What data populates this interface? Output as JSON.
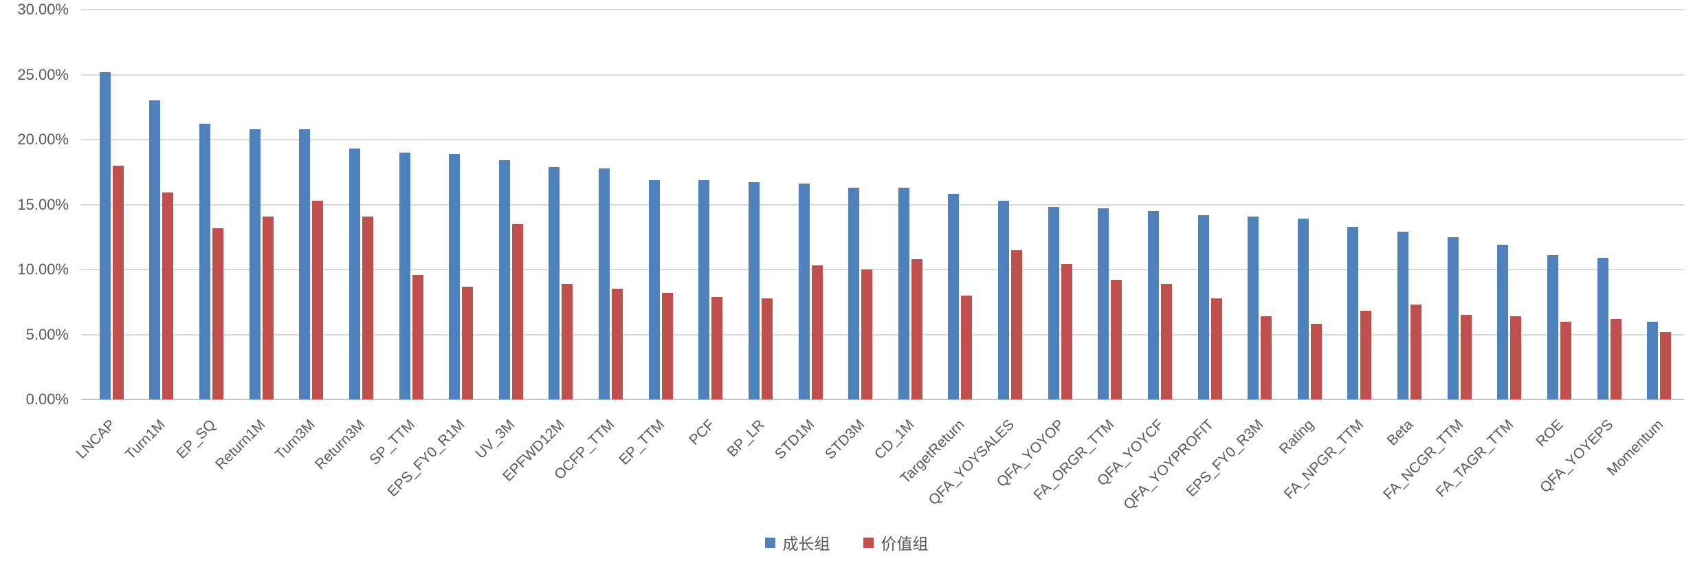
{
  "chart_data": {
    "type": "bar",
    "title": "",
    "xlabel": "",
    "ylabel": "",
    "ylim": [
      0,
      30
    ],
    "grid": true,
    "legend_position": "bottom",
    "yticks": [
      {
        "value": 0,
        "label": "0.00%"
      },
      {
        "value": 5,
        "label": "5.00%"
      },
      {
        "value": 10,
        "label": "10.00%"
      },
      {
        "value": 15,
        "label": "15.00%"
      },
      {
        "value": 20,
        "label": "20.00%"
      },
      {
        "value": 25,
        "label": "25.00%"
      },
      {
        "value": 30,
        "label": "30.00%"
      }
    ],
    "categories": [
      "LNCAP",
      "Turn1M",
      "EP_SQ",
      "Return1M",
      "Turn3M",
      "Return3M",
      "SP_TTM",
      "EPS_FY0_R1M",
      "UV_3M",
      "EPFWD12M",
      "OCFP_TTM",
      "EP_TTM",
      "PCF",
      "BP_LR",
      "STD1M",
      "STD3M",
      "CD_1M",
      "TargetReturn",
      "QFA_YOYSALES",
      "QFA_YOYOP",
      "FA_ORGR_TTM",
      "QFA_YOYCF",
      "QFA_YOYPROFIT",
      "EPS_FY0_R3M",
      "Rating",
      "FA_NPGR_TTM",
      "Beta",
      "FA_NCGR_TTM",
      "FA_TAGR_TTM",
      "ROE",
      "QFA_YOYEPS",
      "Momentum"
    ],
    "series": [
      {
        "name": "成长组",
        "color": "#4f81bd",
        "values": [
          25.2,
          23.0,
          21.2,
          20.8,
          20.8,
          19.3,
          19.0,
          18.9,
          18.4,
          17.9,
          17.8,
          16.9,
          16.9,
          16.7,
          16.6,
          16.3,
          16.3,
          15.8,
          15.3,
          14.8,
          14.7,
          14.5,
          14.2,
          14.1,
          13.9,
          13.3,
          12.9,
          12.5,
          11.9,
          11.1,
          10.9,
          6.0
        ]
      },
      {
        "name": "价值组",
        "color": "#c0504d",
        "values": [
          18.0,
          15.9,
          13.2,
          14.1,
          15.3,
          14.1,
          9.6,
          8.7,
          13.5,
          8.9,
          8.5,
          8.2,
          7.9,
          7.8,
          10.3,
          10.0,
          10.8,
          8.0,
          11.5,
          10.4,
          9.2,
          8.9,
          7.8,
          6.4,
          5.8,
          6.8,
          7.3,
          6.5,
          6.4,
          6.0,
          6.2,
          5.2
        ]
      }
    ],
    "colors": {
      "gridline": "#d9d9d9",
      "axis_line": "#c6c6c6",
      "axis_text": "#595959"
    }
  }
}
